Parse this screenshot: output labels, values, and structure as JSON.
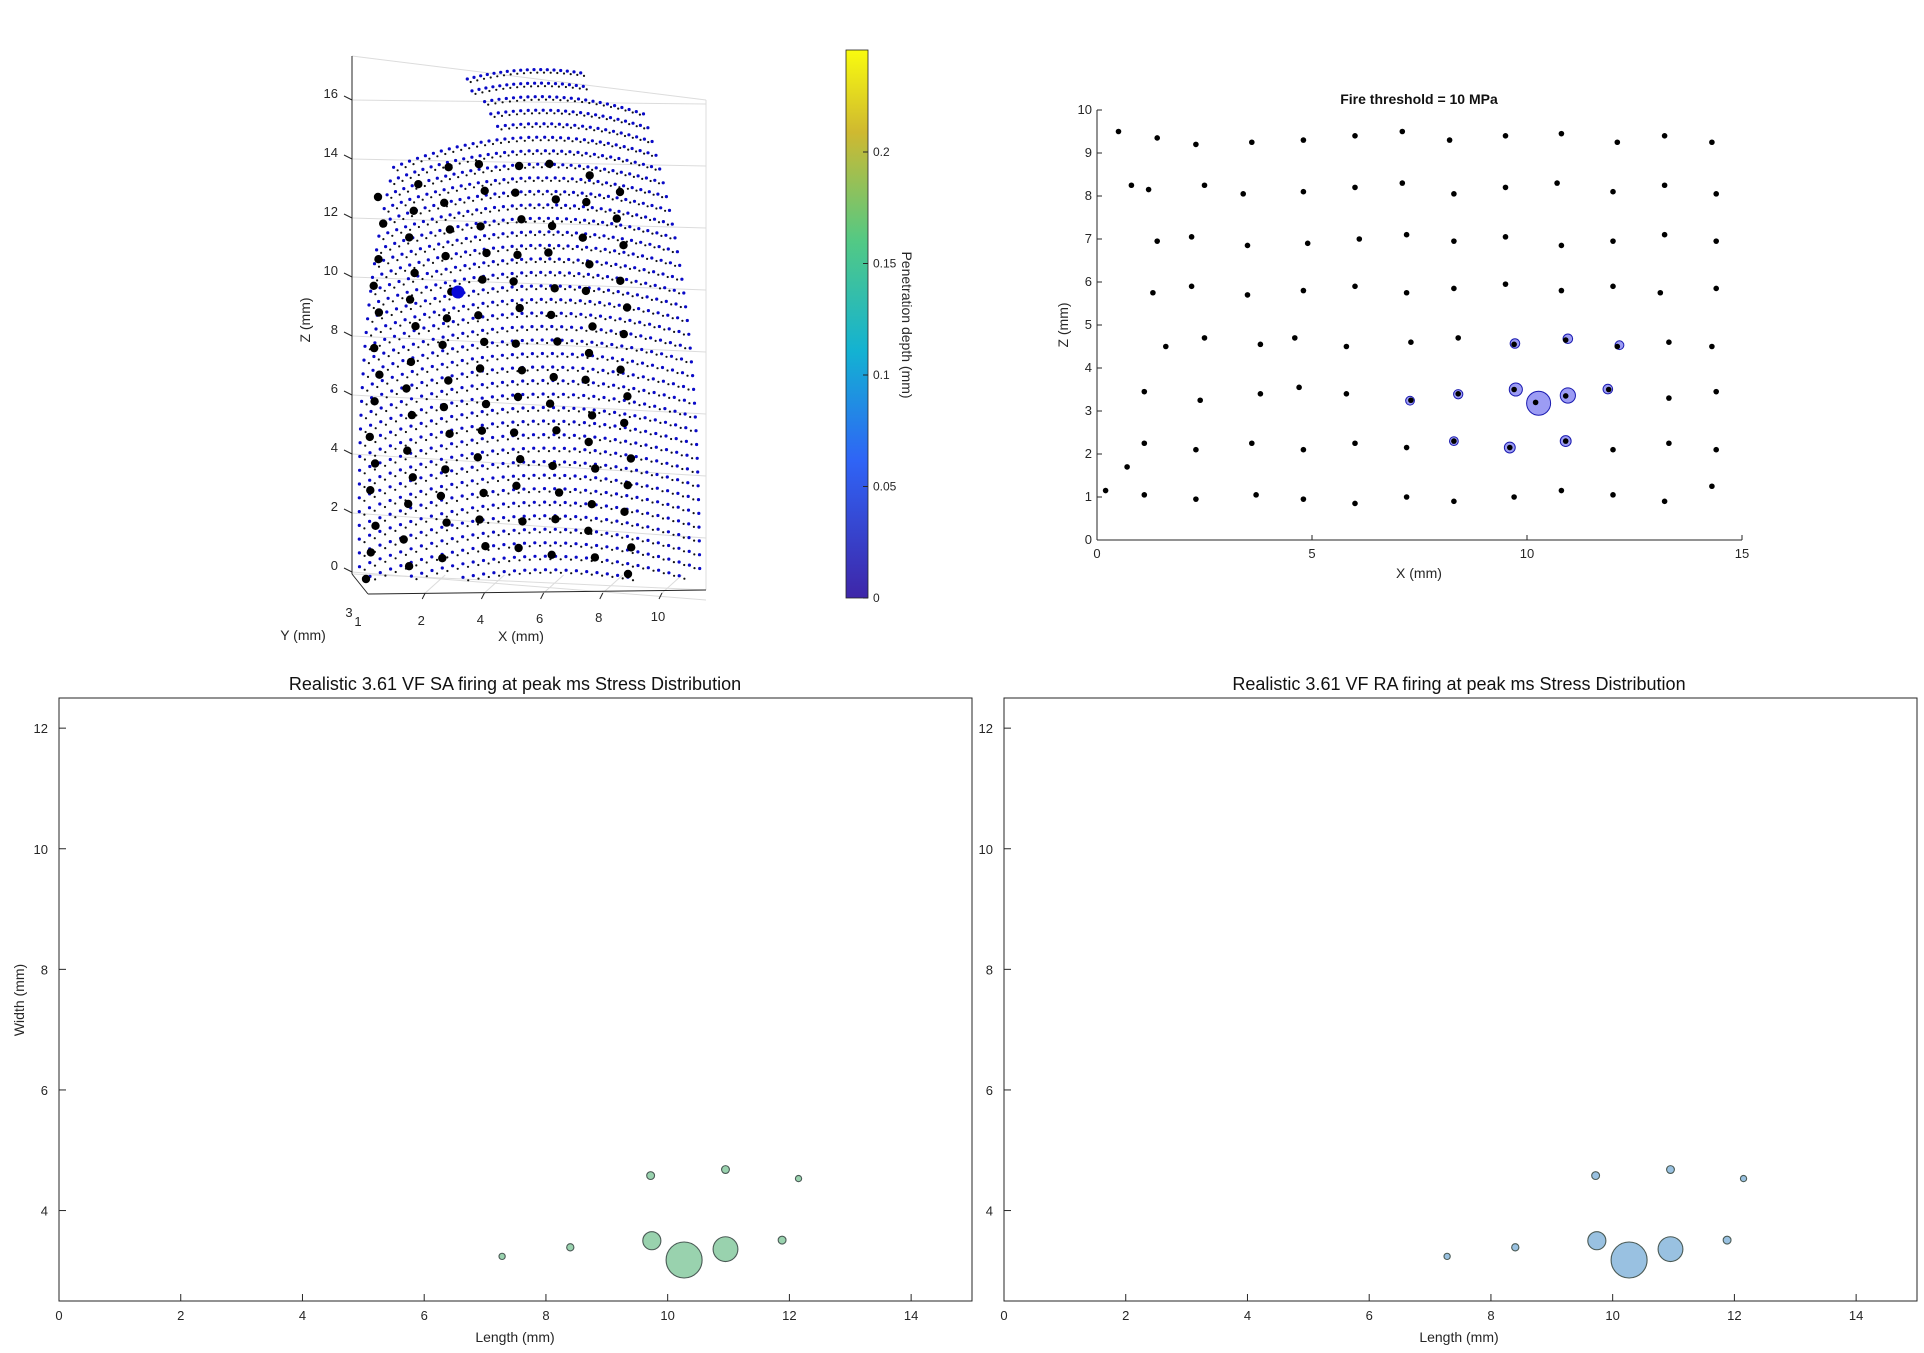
{
  "panel_3d": {
    "z_label": "Z (mm)",
    "x_label": "X (mm)",
    "y_label": "Y (mm)",
    "z_ticks": [
      "0",
      "2",
      "4",
      "6",
      "8",
      "10",
      "12",
      "14",
      "16"
    ],
    "x_ticks": [
      "2",
      "4",
      "6",
      "8",
      "10"
    ],
    "y_ticks": [
      "1",
      "3"
    ],
    "colorbar_label": "Penetration depth (mm)",
    "colorbar_ticks": [
      "0",
      "0.05",
      "0.1",
      "0.15",
      "0.2"
    ]
  },
  "panel_fire": {
    "title": "Fire threshold = 10 MPa",
    "x_label": "X (mm)",
    "y_label": "Z (mm)",
    "x_ticks": [
      "0",
      "5",
      "10",
      "15"
    ],
    "y_ticks": [
      "0",
      "1",
      "2",
      "3",
      "4",
      "5",
      "6",
      "7",
      "8",
      "9",
      "10"
    ]
  },
  "panel_sa": {
    "title": "Realistic 3.61 VF SA firing at peak ms Stress Distribution",
    "x_label": "Length (mm)",
    "y_label": "Width (mm)",
    "x_ticks": [
      "0",
      "2",
      "4",
      "6",
      "8",
      "10",
      "12",
      "14"
    ],
    "y_ticks": [
      "4",
      "6",
      "8",
      "10",
      "12"
    ]
  },
  "panel_ra": {
    "title": "Realistic 3.61 VF RA firing at peak ms Stress Distribution",
    "x_label": "Length (mm)",
    "x_ticks": [
      "0",
      "2",
      "4",
      "6",
      "8",
      "10",
      "12",
      "14"
    ],
    "y_ticks": [
      "4",
      "6",
      "8",
      "10",
      "12"
    ]
  },
  "colors": {
    "black_dot": "#000000",
    "blue_dot": "#0a0ac8",
    "fire_circle": "#7b7bf0",
    "sa_bubble": "#7fc79a",
    "ra_bubble": "#7fb2d9",
    "colorbar_stops": [
      "#3e26a8",
      "#2f64f6",
      "#13b2d2",
      "#52c985",
      "#cfb930",
      "#f9fb0e"
    ]
  },
  "chart_data": [
    {
      "type": "scatter",
      "name": "3d-receptor-view",
      "xlim": [
        0,
        12
      ],
      "ylim": [
        0,
        17
      ],
      "xlabel": "X (mm)",
      "ylabel": "Z (mm)",
      "zlabel": "Y (mm)",
      "colorbar": {
        "label": "Penetration depth (mm)",
        "range": [
          0,
          0.24
        ]
      },
      "highlighted_point": {
        "x": 3.3,
        "z": 9.8
      }
    },
    {
      "type": "scatter",
      "name": "fire-threshold",
      "title": "Fire threshold = 10 MPa",
      "xlim": [
        0,
        15
      ],
      "ylim": [
        0,
        10
      ],
      "receptors": [
        [
          0.5,
          9.5
        ],
        [
          1.4,
          9.35
        ],
        [
          2.3,
          9.2
        ],
        [
          3.6,
          9.25
        ],
        [
          4.8,
          9.3
        ],
        [
          6.0,
          9.4
        ],
        [
          7.1,
          9.5
        ],
        [
          8.2,
          9.3
        ],
        [
          9.5,
          9.4
        ],
        [
          10.8,
          9.45
        ],
        [
          12.1,
          9.25
        ],
        [
          13.2,
          9.4
        ],
        [
          14.3,
          9.25
        ],
        [
          0.8,
          8.25
        ],
        [
          1.2,
          8.15
        ],
        [
          2.5,
          8.25
        ],
        [
          3.4,
          8.05
        ],
        [
          4.8,
          8.1
        ],
        [
          6.0,
          8.2
        ],
        [
          7.1,
          8.3
        ],
        [
          8.3,
          8.05
        ],
        [
          9.5,
          8.2
        ],
        [
          10.7,
          8.3
        ],
        [
          12.0,
          8.1
        ],
        [
          13.2,
          8.25
        ],
        [
          14.4,
          8.05
        ],
        [
          1.4,
          6.95
        ],
        [
          2.2,
          7.05
        ],
        [
          3.5,
          6.85
        ],
        [
          4.9,
          6.9
        ],
        [
          6.1,
          7.0
        ],
        [
          7.2,
          7.1
        ],
        [
          8.3,
          6.95
        ],
        [
          9.5,
          7.05
        ],
        [
          10.8,
          6.85
        ],
        [
          12.0,
          6.95
        ],
        [
          13.2,
          7.1
        ],
        [
          14.4,
          6.95
        ],
        [
          1.3,
          5.75
        ],
        [
          2.2,
          5.9
        ],
        [
          3.5,
          5.7
        ],
        [
          4.8,
          5.8
        ],
        [
          6.0,
          5.9
        ],
        [
          7.2,
          5.75
        ],
        [
          8.3,
          5.85
        ],
        [
          9.5,
          5.95
        ],
        [
          10.8,
          5.8
        ],
        [
          12.0,
          5.9
        ],
        [
          13.1,
          5.75
        ],
        [
          14.4,
          5.85
        ],
        [
          1.6,
          4.5
        ],
        [
          2.5,
          4.7
        ],
        [
          3.8,
          4.55
        ],
        [
          4.6,
          4.7
        ],
        [
          5.8,
          4.5
        ],
        [
          7.3,
          4.6
        ],
        [
          8.4,
          4.7
        ],
        [
          9.7,
          4.55
        ],
        [
          10.9,
          4.65
        ],
        [
          12.1,
          4.5
        ],
        [
          13.3,
          4.6
        ],
        [
          14.3,
          4.5
        ],
        [
          1.1,
          3.45
        ],
        [
          2.4,
          3.25
        ],
        [
          3.8,
          3.4
        ],
        [
          4.7,
          3.55
        ],
        [
          5.8,
          3.4
        ],
        [
          7.3,
          3.25
        ],
        [
          8.4,
          3.4
        ],
        [
          9.7,
          3.5
        ],
        [
          10.2,
          3.2
        ],
        [
          10.9,
          3.35
        ],
        [
          11.9,
          3.5
        ],
        [
          13.3,
          3.3
        ],
        [
          14.4,
          3.45
        ],
        [
          1.1,
          2.25
        ],
        [
          2.3,
          2.1
        ],
        [
          3.6,
          2.25
        ],
        [
          4.8,
          2.1
        ],
        [
          6.0,
          2.25
        ],
        [
          7.2,
          2.15
        ],
        [
          8.3,
          2.3
        ],
        [
          9.6,
          2.15
        ],
        [
          10.9,
          2.3
        ],
        [
          12.0,
          2.1
        ],
        [
          13.3,
          2.25
        ],
        [
          14.4,
          2.1
        ],
        [
          0.2,
          1.15
        ],
        [
          1.1,
          1.05
        ],
        [
          2.3,
          0.95
        ],
        [
          3.7,
          1.05
        ],
        [
          4.8,
          0.95
        ],
        [
          6.0,
          0.85
        ],
        [
          7.2,
          1.0
        ],
        [
          8.3,
          0.9
        ],
        [
          9.7,
          1.0
        ],
        [
          10.8,
          1.15
        ],
        [
          12.0,
          1.05
        ],
        [
          13.2,
          0.9
        ],
        [
          14.3,
          1.25
        ],
        [
          0.7,
          1.7
        ]
      ],
      "firing": [
        {
          "x": 9.72,
          "y": 4.57,
          "s": 0.1
        },
        {
          "x": 10.95,
          "y": 4.68,
          "s": 0.1
        },
        {
          "x": 12.15,
          "y": 4.53,
          "s": 0.05
        },
        {
          "x": 7.28,
          "y": 3.24,
          "s": 0.05
        },
        {
          "x": 8.4,
          "y": 3.39,
          "s": 0.08
        },
        {
          "x": 9.74,
          "y": 3.5,
          "s": 0.32
        },
        {
          "x": 10.27,
          "y": 3.18,
          "s": 1.0
        },
        {
          "x": 10.95,
          "y": 3.36,
          "s": 0.45
        },
        {
          "x": 11.88,
          "y": 3.51,
          "s": 0.1
        },
        {
          "x": 8.3,
          "y": 2.3,
          "s": 0.05
        },
        {
          "x": 9.6,
          "y": 2.15,
          "s": 0.18
        },
        {
          "x": 10.9,
          "y": 2.3,
          "s": 0.18
        }
      ]
    },
    {
      "type": "scatter",
      "name": "sa-stress",
      "title": "Realistic 3.61 VF SA firing at peak ms Stress Distribution",
      "xlabel": "Length (mm)",
      "ylabel": "Width (mm)",
      "xlim": [
        0,
        15
      ],
      "ylim": [
        2.5,
        12.5
      ],
      "bubbles": [
        {
          "x": 9.72,
          "y": 4.58,
          "s": 0.12
        },
        {
          "x": 10.95,
          "y": 4.68,
          "s": 0.12
        },
        {
          "x": 12.15,
          "y": 4.53,
          "s": 0.07
        },
        {
          "x": 7.28,
          "y": 3.24,
          "s": 0.07
        },
        {
          "x": 8.4,
          "y": 3.39,
          "s": 0.1
        },
        {
          "x": 9.74,
          "y": 3.5,
          "s": 0.44
        },
        {
          "x": 10.27,
          "y": 3.18,
          "s": 1.0
        },
        {
          "x": 10.95,
          "y": 3.36,
          "s": 0.65
        },
        {
          "x": 11.88,
          "y": 3.51,
          "s": 0.12
        }
      ]
    },
    {
      "type": "scatter",
      "name": "ra-stress",
      "title": "Realistic 3.61 VF RA firing at peak ms Stress Distribution",
      "xlabel": "Length (mm)",
      "xlim": [
        0,
        15
      ],
      "ylim": [
        2.5,
        12.5
      ],
      "bubbles": [
        {
          "x": 9.72,
          "y": 4.58,
          "s": 0.12
        },
        {
          "x": 10.95,
          "y": 4.68,
          "s": 0.12
        },
        {
          "x": 12.15,
          "y": 4.53,
          "s": 0.07
        },
        {
          "x": 7.28,
          "y": 3.24,
          "s": 0.07
        },
        {
          "x": 8.4,
          "y": 3.39,
          "s": 0.1
        },
        {
          "x": 9.74,
          "y": 3.5,
          "s": 0.44
        },
        {
          "x": 10.27,
          "y": 3.18,
          "s": 1.0
        },
        {
          "x": 10.95,
          "y": 3.36,
          "s": 0.65
        },
        {
          "x": 11.88,
          "y": 3.51,
          "s": 0.12
        }
      ]
    }
  ]
}
